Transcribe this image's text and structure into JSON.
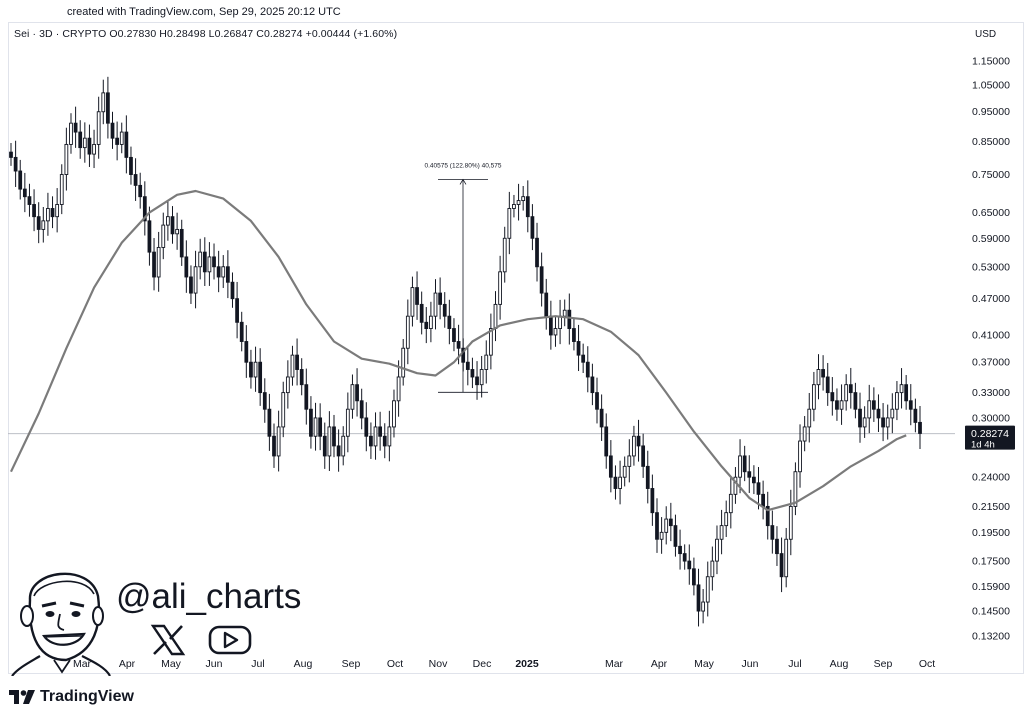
{
  "header": {
    "caption": "created with TradingView.com, Sep 29, 2025 20:12 UTC",
    "legend": "Sei · 3D · CRYPTO  O0.27830  H0.28498  L0.26847  C0.28274  +0.00444 (+1.60%)",
    "currency": "USD"
  },
  "chart_data": {
    "type": "candlestick",
    "symbol": "Sei",
    "timeframe": "3D",
    "exchange": "CRYPTO",
    "ohlc_last": {
      "open": 0.2783,
      "high": 0.28498,
      "low": 0.26847,
      "close": 0.28274,
      "change": 0.00444,
      "change_pct": 1.6
    },
    "y_scale": "log",
    "y_ticks": [
      1.15,
      1.05,
      0.95,
      0.85,
      0.75,
      0.65,
      0.59,
      0.53,
      0.47,
      0.41,
      0.37,
      0.33,
      0.3,
      0.24,
      0.215,
      0.195,
      0.175,
      0.159,
      0.145,
      0.132
    ],
    "y_tick_labels": [
      "1.15000",
      "1.05000",
      "0.95000",
      "0.85000",
      "0.75000",
      "0.65000",
      "0.59000",
      "0.53000",
      "0.47000",
      "0.41000",
      "0.37000",
      "0.33000",
      "0.30000",
      "0.24000",
      "0.21500",
      "0.19500",
      "0.17500",
      "0.15900",
      "0.14500",
      "0.13200"
    ],
    "x_labels": [
      "Mar",
      "Apr",
      "May",
      "Jun",
      "Jul",
      "Aug",
      "Sep",
      "Oct",
      "Nov",
      "Dec",
      "2025",
      "Mar",
      "Apr",
      "May",
      "Jun",
      "Jul",
      "Aug",
      "Sep",
      "Oct"
    ],
    "x_labels_bold": [
      "2025"
    ],
    "last_price": {
      "value": 0.28274,
      "label": "0.28274",
      "countdown": "1d 4h"
    },
    "measurement": {
      "label": "0.40575 (122.80%) 40,575",
      "from_price": 0.3304,
      "to_price": 0.7362,
      "change": 0.40575,
      "change_pct": 122.8
    },
    "moving_average": {
      "points": [
        {
          "i": 0,
          "v": 0.245
        },
        {
          "i": 6,
          "v": 0.305
        },
        {
          "i": 12,
          "v": 0.39
        },
        {
          "i": 18,
          "v": 0.49
        },
        {
          "i": 24,
          "v": 0.58
        },
        {
          "i": 30,
          "v": 0.65
        },
        {
          "i": 36,
          "v": 0.695
        },
        {
          "i": 40,
          "v": 0.705
        },
        {
          "i": 46,
          "v": 0.685
        },
        {
          "i": 52,
          "v": 0.63
        },
        {
          "i": 58,
          "v": 0.55
        },
        {
          "i": 64,
          "v": 0.46
        },
        {
          "i": 70,
          "v": 0.4
        },
        {
          "i": 76,
          "v": 0.375
        },
        {
          "i": 82,
          "v": 0.368
        },
        {
          "i": 88,
          "v": 0.355
        },
        {
          "i": 92,
          "v": 0.352
        },
        {
          "i": 96,
          "v": 0.37
        },
        {
          "i": 100,
          "v": 0.4
        },
        {
          "i": 106,
          "v": 0.425
        },
        {
          "i": 112,
          "v": 0.435
        },
        {
          "i": 118,
          "v": 0.44
        },
        {
          "i": 124,
          "v": 0.435
        },
        {
          "i": 130,
          "v": 0.415
        },
        {
          "i": 136,
          "v": 0.38
        },
        {
          "i": 142,
          "v": 0.33
        },
        {
          "i": 148,
          "v": 0.285
        },
        {
          "i": 154,
          "v": 0.25
        },
        {
          "i": 160,
          "v": 0.222
        },
        {
          "i": 164,
          "v": 0.212
        },
        {
          "i": 170,
          "v": 0.218
        },
        {
          "i": 176,
          "v": 0.232
        },
        {
          "i": 182,
          "v": 0.25
        },
        {
          "i": 188,
          "v": 0.265
        },
        {
          "i": 192,
          "v": 0.277
        },
        {
          "i": 194,
          "v": 0.281
        }
      ]
    },
    "candle_closes": [
      0.8,
      0.76,
      0.71,
      0.69,
      0.67,
      0.64,
      0.61,
      0.63,
      0.66,
      0.64,
      0.67,
      0.75,
      0.84,
      0.91,
      0.88,
      0.83,
      0.86,
      0.81,
      0.84,
      0.95,
      1.02,
      0.91,
      0.86,
      0.84,
      0.88,
      0.8,
      0.75,
      0.72,
      0.69,
      0.63,
      0.56,
      0.51,
      0.57,
      0.62,
      0.64,
      0.6,
      0.61,
      0.55,
      0.51,
      0.48,
      0.53,
      0.56,
      0.52,
      0.55,
      0.53,
      0.51,
      0.53,
      0.5,
      0.47,
      0.43,
      0.4,
      0.37,
      0.35,
      0.37,
      0.33,
      0.31,
      0.28,
      0.26,
      0.29,
      0.33,
      0.35,
      0.38,
      0.36,
      0.34,
      0.31,
      0.28,
      0.3,
      0.28,
      0.26,
      0.29,
      0.27,
      0.26,
      0.28,
      0.31,
      0.34,
      0.32,
      0.3,
      0.28,
      0.27,
      0.29,
      0.28,
      0.27,
      0.29,
      0.32,
      0.35,
      0.39,
      0.44,
      0.49,
      0.46,
      0.43,
      0.42,
      0.44,
      0.48,
      0.46,
      0.44,
      0.42,
      0.4,
      0.39,
      0.37,
      0.36,
      0.35,
      0.34,
      0.36,
      0.38,
      0.42,
      0.46,
      0.52,
      0.59,
      0.66,
      0.67,
      0.68,
      0.69,
      0.64,
      0.59,
      0.53,
      0.48,
      0.44,
      0.41,
      0.42,
      0.44,
      0.45,
      0.42,
      0.4,
      0.38,
      0.37,
      0.35,
      0.33,
      0.31,
      0.29,
      0.26,
      0.24,
      0.23,
      0.24,
      0.25,
      0.26,
      0.28,
      0.27,
      0.25,
      0.23,
      0.21,
      0.19,
      0.195,
      0.205,
      0.2,
      0.185,
      0.18,
      0.175,
      0.17,
      0.16,
      0.145,
      0.15,
      0.165,
      0.175,
      0.19,
      0.2,
      0.21,
      0.225,
      0.24,
      0.26,
      0.245,
      0.24,
      0.235,
      0.225,
      0.215,
      0.2,
      0.19,
      0.18,
      0.165,
      0.19,
      0.215,
      0.245,
      0.275,
      0.29,
      0.31,
      0.34,
      0.36,
      0.35,
      0.33,
      0.32,
      0.31,
      0.32,
      0.34,
      0.33,
      0.31,
      0.29,
      0.3,
      0.32,
      0.31,
      0.3,
      0.29,
      0.3,
      0.31,
      0.33,
      0.34,
      0.32,
      0.31,
      0.295,
      0.283
    ]
  },
  "watermark": {
    "handle": "@ali_charts",
    "social": [
      "x-logo",
      "youtube-logo"
    ]
  },
  "footer": {
    "brand": "TradingView"
  }
}
